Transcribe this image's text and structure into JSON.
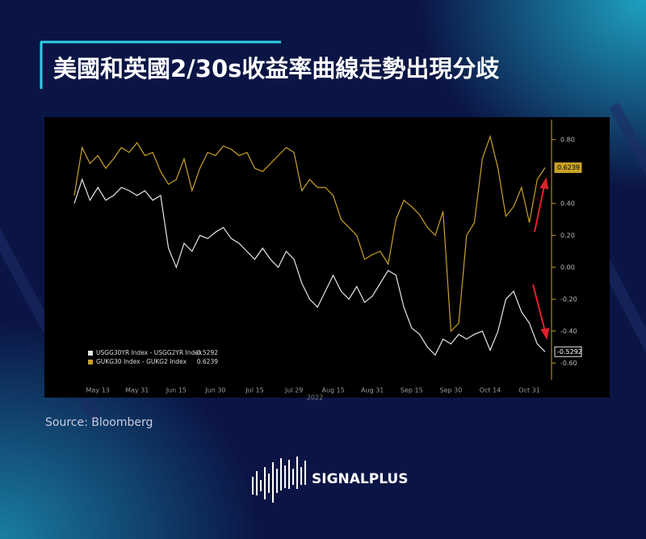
{
  "header": {
    "title": "美國和英國2/30s收益率曲線走勢出現分歧"
  },
  "chart_data": {
    "type": "line",
    "categories": [
      null,
      null,
      null,
      "May 13",
      null,
      null,
      null,
      null,
      "May 31",
      null,
      null,
      null,
      null,
      "Jun 15",
      null,
      null,
      null,
      null,
      "Jun 30",
      null,
      null,
      null,
      null,
      "Jul 15",
      null,
      null,
      null,
      null,
      "Jul 29",
      null,
      null,
      null,
      null,
      "Aug 15",
      null,
      null,
      null,
      null,
      "Aug 31",
      null,
      null,
      null,
      null,
      "Sep 15",
      null,
      null,
      null,
      null,
      "Sep 30",
      null,
      null,
      null,
      null,
      "Oct 14",
      null,
      null,
      null,
      null,
      "Oct 31",
      null,
      null
    ],
    "xlabel": "2022",
    "series": [
      {
        "name": "USGG30YR Index - USGG2YR Index",
        "color": "#e6e6e6",
        "values": [
          0.4,
          0.55,
          0.42,
          0.5,
          0.42,
          0.45,
          0.5,
          0.48,
          0.45,
          0.48,
          0.42,
          0.45,
          0.12,
          0.0,
          0.15,
          0.1,
          0.2,
          0.18,
          0.22,
          0.25,
          0.18,
          0.15,
          0.1,
          0.05,
          0.12,
          0.05,
          0.0,
          0.1,
          0.05,
          -0.1,
          -0.2,
          -0.25,
          -0.15,
          -0.05,
          -0.15,
          -0.2,
          -0.12,
          -0.22,
          -0.18,
          -0.1,
          -0.02,
          -0.05,
          -0.25,
          -0.38,
          -0.42,
          -0.5,
          -0.55,
          -0.45,
          -0.48,
          -0.42,
          -0.45,
          -0.42,
          -0.4,
          -0.52,
          -0.4,
          -0.2,
          -0.15,
          -0.28,
          -0.35,
          -0.48,
          -0.5292
        ]
      },
      {
        "name": "GUKG30 Index - GUKG2 Index",
        "color": "#c9a227",
        "values": [
          0.45,
          0.75,
          0.65,
          0.7,
          0.62,
          0.68,
          0.75,
          0.72,
          0.78,
          0.7,
          0.72,
          0.6,
          0.52,
          0.55,
          0.68,
          0.48,
          0.62,
          0.72,
          0.7,
          0.76,
          0.74,
          0.7,
          0.72,
          0.62,
          0.6,
          0.65,
          0.7,
          0.75,
          0.72,
          0.48,
          0.55,
          0.5,
          0.5,
          0.45,
          0.3,
          0.25,
          0.2,
          0.05,
          0.08,
          0.1,
          0.02,
          0.3,
          0.42,
          0.38,
          0.33,
          0.25,
          0.2,
          0.35,
          -0.4,
          -0.35,
          0.2,
          0.28,
          0.68,
          0.82,
          0.62,
          0.32,
          0.38,
          0.5,
          0.28,
          0.55,
          0.6239
        ]
      }
    ],
    "ylim": [
      -0.7,
      0.9
    ],
    "yticks": [
      {
        "value": 0.8,
        "label": "0.80"
      },
      {
        "value": 0.4,
        "label": "0.40"
      },
      {
        "value": 0.2,
        "label": "0.20"
      },
      {
        "value": 0,
        "label": "0.00"
      },
      {
        "value": -0.2,
        "label": "-0.20"
      },
      {
        "value": -0.4,
        "label": "-0.40"
      },
      {
        "value": -0.6,
        "label": "-0.60"
      }
    ],
    "grid": false
  },
  "source": "Source:  Bloomberg",
  "brand": "SIGNALPLUS"
}
